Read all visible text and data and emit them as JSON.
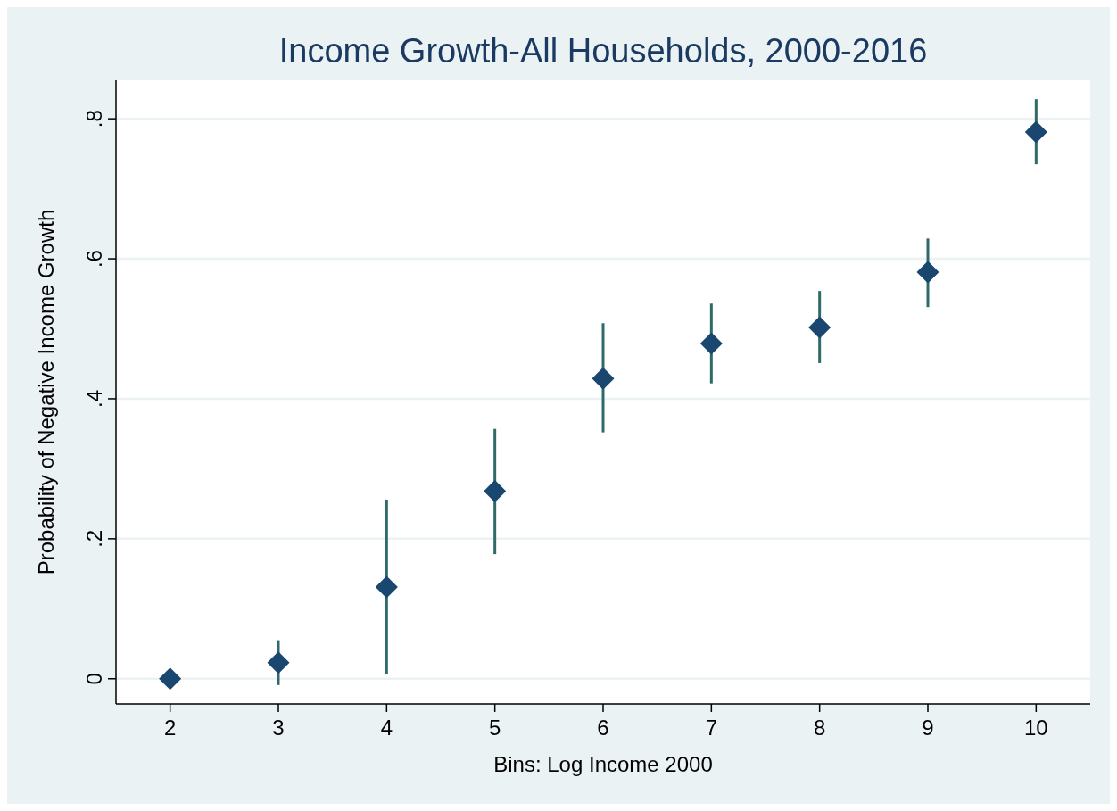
{
  "chart_data": {
    "type": "scatter",
    "title": "Income Growth-All Households, 2000-2016",
    "xlabel": "Bins: Log Income 2000",
    "ylabel": "Probability of Negative Income Growth",
    "x": [
      2,
      3,
      4,
      5,
      6,
      7,
      8,
      9,
      10
    ],
    "values": [
      0,
      0.023,
      0.131,
      0.268,
      0.429,
      0.479,
      0.502,
      0.581,
      0.781
    ],
    "errors": [
      null,
      [
        -0.009,
        0.055
      ],
      [
        0.006,
        0.256
      ],
      [
        0.178,
        0.357
      ],
      [
        0.352,
        0.508
      ],
      [
        0.422,
        0.536
      ],
      [
        0.451,
        0.554
      ],
      [
        0.531,
        0.629
      ],
      [
        0.735,
        0.828
      ]
    ],
    "color": "#1a476f",
    "marker": "diamond",
    "xlim": [
      1.5,
      10.5
    ],
    "xticks": [
      2,
      3,
      4,
      5,
      6,
      7,
      8,
      9,
      10
    ],
    "ylim": [
      -0.036,
      0.855
    ],
    "yticks": [
      0,
      {
        "value": 0.2,
        "label": ".2"
      },
      {
        "value": 0.4,
        "label": ".4"
      },
      {
        "value": 0.6,
        "label": ".6"
      },
      {
        "value": 0.8,
        "label": ".8"
      }
    ],
    "grid": "y"
  }
}
